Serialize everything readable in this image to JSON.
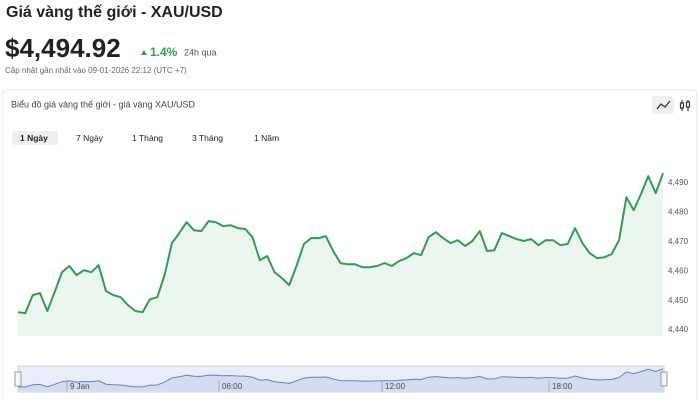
{
  "header": {
    "title": "Giá vàng thế giới - XAU/USD",
    "price": "$4,494.92",
    "change": "1.4%",
    "period": "24h qua",
    "updated": "Cập nhật gần nhất vào 09-01-2026 22:12 (UTC +7)"
  },
  "card": {
    "title": "Biểu đồ giá vàng thế giới - giá vàng XAU/USD",
    "tabs": [
      "1 Ngày",
      "7 Ngày",
      "1 Tháng",
      "3 Tháng",
      "1 Năm"
    ],
    "selected_tab": 0
  },
  "chart_data": {
    "type": "area",
    "color": "#2e9e52",
    "fill": "#eaf6ee",
    "values": [
      4446.1,
      4445.8,
      4451.9,
      4452.6,
      4446.5,
      4452.9,
      4459.7,
      4461.8,
      4458.7,
      4460.4,
      4459.7,
      4462.1,
      4453.3,
      4451.9,
      4451.2,
      4448.5,
      4446.5,
      4446.1,
      4450.5,
      4451.2,
      4458.7,
      4469.6,
      4473.0,
      4476.7,
      4474.0,
      4473.7,
      4477.1,
      4476.7,
      4475.4,
      4475.7,
      4474.7,
      4474.4,
      4471.6,
      4463.8,
      4465.2,
      4459.7,
      4457.7,
      4455.3,
      4461.8,
      4469.3,
      4471.3,
      4471.3,
      4472.0,
      4466.9,
      4462.8,
      4462.4,
      4462.4,
      4461.4,
      4461.4,
      4461.8,
      4462.8,
      4461.8,
      4463.5,
      4464.5,
      4466.2,
      4465.5,
      4471.6,
      4473.3,
      4471.3,
      4469.6,
      4470.6,
      4468.6,
      4470.3,
      4473.7,
      4466.9,
      4467.2,
      4473.0,
      4472.0,
      4471.0,
      4470.3,
      4471.0,
      4468.9,
      4470.6,
      4470.6,
      4468.9,
      4469.3,
      4474.7,
      4469.6,
      4466.2,
      4464.5,
      4464.8,
      4465.9,
      4470.6,
      4485.2,
      4480.8,
      4486.3,
      4492.4,
      4486.6,
      4493.4
    ],
    "ylim": [
      4438,
      4501
    ],
    "yticks": [
      {
        "value": 4440,
        "label": "4,440"
      },
      {
        "value": 4450,
        "label": "4,450"
      },
      {
        "value": 4460,
        "label": "4,460"
      },
      {
        "value": 4470,
        "label": "4,470"
      },
      {
        "value": 4480,
        "label": "4,480"
      },
      {
        "value": 4490,
        "label": "4,490"
      }
    ],
    "navigator_labels": [
      "9 Jan",
      "06:00",
      "12:00",
      "18:00"
    ]
  }
}
